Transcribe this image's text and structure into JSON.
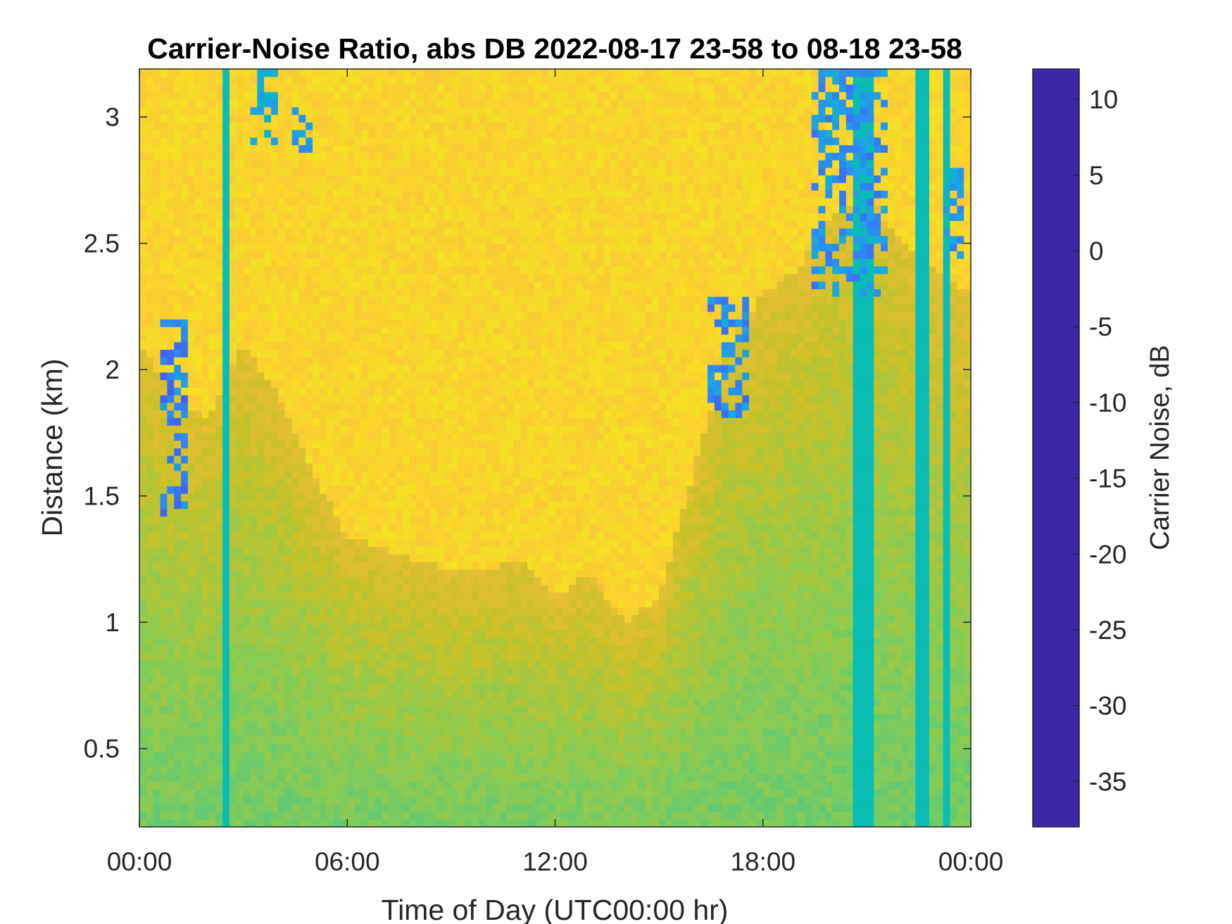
{
  "chart_data": {
    "type": "heatmap",
    "title": "Carrier-Noise Ratio, abs DB 2022-08-17 23-58 to 08-18 23-58",
    "xlabel": "Time of Day (UTC00:00 hr)",
    "ylabel": "Distance (km)",
    "colorbar_label": "Carrier Noise, dB",
    "x_unit": "hours",
    "xlim": [
      0,
      24
    ],
    "ylim": [
      0.19,
      3.19
    ],
    "clim": [
      -38,
      12
    ],
    "x_ticks": [
      0,
      6,
      12,
      18,
      24
    ],
    "x_tick_labels": [
      "00:00",
      "06:00",
      "12:00",
      "18:00",
      "00:00"
    ],
    "y_ticks": [
      0.5,
      1,
      1.5,
      2,
      2.5,
      3
    ],
    "y_tick_labels": [
      "0.5",
      "1",
      "1.5",
      "2",
      "2.5",
      "3"
    ],
    "colorbar_ticks": [
      10,
      5,
      0,
      -5,
      -10,
      -15,
      -20,
      -25,
      -30,
      -35
    ],
    "colorbar_tick_labels": [
      "10",
      "5",
      "0",
      "-5",
      "-10",
      "-15",
      "-20",
      "-25",
      "-30",
      "-35"
    ],
    "colormap": [
      "#3e26a8",
      "#4755f0",
      "#2e87f7",
      "#1aa9df",
      "#00bbbc",
      "#2ec797",
      "#81cc59",
      "#c9c128",
      "#fdbd3c",
      "#f5e51f",
      "#f9fb0e"
    ],
    "background_level_db": -31,
    "boundary_layer_top_km": [
      [
        0,
        2.1
      ],
      [
        1,
        1.9
      ],
      [
        2,
        1.8
      ],
      [
        3,
        2.1
      ],
      [
        4,
        1.9
      ],
      [
        5,
        1.6
      ],
      [
        6,
        1.35
      ],
      [
        7,
        1.3
      ],
      [
        8,
        1.25
      ],
      [
        9,
        1.2
      ],
      [
        10,
        1.2
      ],
      [
        11,
        1.25
      ],
      [
        12,
        1.1
      ],
      [
        13,
        1.2
      ],
      [
        14,
        1.0
      ],
      [
        15,
        1.1
      ],
      [
        16,
        1.6
      ],
      [
        17,
        2.1
      ],
      [
        18,
        2.3
      ],
      [
        19,
        2.4
      ],
      [
        20,
        2.6
      ],
      [
        21,
        2.7
      ],
      [
        22,
        2.5
      ],
      [
        23,
        2.4
      ],
      [
        24,
        2.3
      ]
    ],
    "strong_echoes": [
      {
        "t": [
          0.6,
          1.4
        ],
        "d": [
          1.4,
          2.2
        ],
        "db": 6
      },
      {
        "t": [
          3.2,
          4.0
        ],
        "d": [
          2.9,
          3.19
        ],
        "db": 0
      },
      {
        "t": [
          4.4,
          5.1
        ],
        "d": [
          2.85,
          3.05
        ],
        "db": 2
      },
      {
        "t": [
          16.5,
          17.5
        ],
        "d": [
          1.8,
          2.3
        ],
        "db": 5
      },
      {
        "t": [
          19.5,
          21.5
        ],
        "d": [
          2.3,
          3.19
        ],
        "db": 4
      },
      {
        "t": [
          23.2,
          23.9
        ],
        "d": [
          2.4,
          2.8
        ],
        "db": 3
      }
    ],
    "vertical_streaks_hr": [
      2.5,
      20.8,
      21.15,
      22.6,
      23.35
    ]
  }
}
